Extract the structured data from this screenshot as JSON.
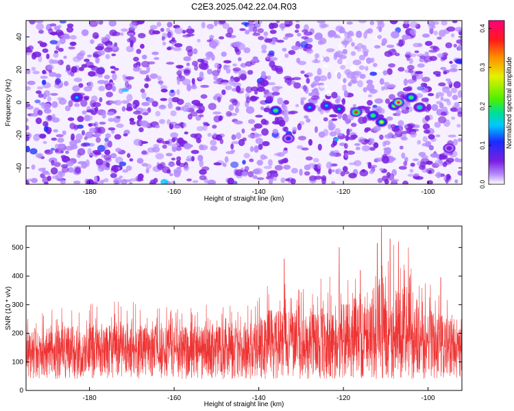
{
  "title": "C2E3.2025.042.22.04.R03",
  "colors": {
    "snr_line": "#ee3333",
    "colormap": [
      "#ffffff",
      "#b68cff",
      "#7a1fe0",
      "#1a2cff",
      "#00c8ff",
      "#00e090",
      "#4ef000",
      "#e6f000",
      "#ff8a00",
      "#ff1a1a",
      "#ff007a"
    ]
  },
  "chart_data": [
    {
      "type": "heatmap",
      "title": "C2E3.2025.042.22.04.R03",
      "xlabel": "Height of straight line (km)",
      "ylabel": "Frequency (Hz)",
      "xlim": [
        -195,
        -92
      ],
      "ylim": [
        -50,
        50
      ],
      "x_ticks": [
        -180,
        -160,
        -140,
        -120,
        -100
      ],
      "y_ticks": [
        -40,
        -20,
        0,
        20,
        40
      ],
      "colorbar": {
        "label": "Normalized spectral amplitude",
        "range": [
          0.0,
          0.42
        ],
        "ticks": [
          0.0,
          0.1,
          0.2,
          0.3,
          0.4
        ]
      },
      "features": [
        {
          "x": -136,
          "y": -5,
          "value": 0.25
        },
        {
          "x": -128,
          "y": -3,
          "value": 0.15
        },
        {
          "x": -124,
          "y": -2,
          "value": 0.18
        },
        {
          "x": -121,
          "y": -4,
          "value": 0.2
        },
        {
          "x": -117,
          "y": -6,
          "value": 0.38
        },
        {
          "x": -113,
          "y": -8,
          "value": 0.25
        },
        {
          "x": -111,
          "y": -12,
          "value": 0.3
        },
        {
          "x": -108,
          "y": -2,
          "value": 0.28
        },
        {
          "x": -107,
          "y": 0,
          "value": 0.4
        },
        {
          "x": -104,
          "y": 3,
          "value": 0.25
        },
        {
          "x": -102,
          "y": -3,
          "value": 0.22
        },
        {
          "x": -183,
          "y": 3,
          "value": 0.15
        },
        {
          "x": -133,
          "y": -22,
          "value": 0.12
        },
        {
          "x": -95,
          "y": -28,
          "value": 0.1
        }
      ]
    },
    {
      "type": "line",
      "xlabel": "Height of straight line (km)",
      "ylabel": "SNR (10 * v/v)",
      "xlim": [
        -195,
        -92
      ],
      "ylim": [
        0,
        575
      ],
      "x_ticks": [
        -180,
        -160,
        -140,
        -120,
        -100
      ],
      "y_ticks": [
        0,
        100,
        200,
        300,
        400,
        500
      ],
      "series": [
        {
          "envelope": [
            {
              "x": -195,
              "max": 260,
              "median": 130
            },
            {
              "x": -180,
              "max": 320,
              "median": 130
            },
            {
              "x": -160,
              "max": 300,
              "median": 130
            },
            {
              "x": -145,
              "max": 300,
              "median": 135
            },
            {
              "x": -137,
              "max": 390,
              "median": 160
            },
            {
              "x": -130,
              "max": 360,
              "median": 150
            },
            {
              "x": -120,
              "max": 430,
              "median": 165
            },
            {
              "x": -115,
              "max": 470,
              "median": 175
            },
            {
              "x": -111,
              "max": 575,
              "median": 185
            },
            {
              "x": -105,
              "max": 520,
              "median": 175
            },
            {
              "x": -100,
              "max": 400,
              "median": 160
            },
            {
              "x": -92,
              "max": 300,
              "median": 140
            }
          ],
          "peaks": [
            {
              "x": -134,
              "y": 460
            },
            {
              "x": -121,
              "y": 500
            },
            {
              "x": -116,
              "y": 420
            },
            {
              "x": -112,
              "y": 515
            },
            {
              "x": -111,
              "y": 575
            },
            {
              "x": -109,
              "y": 530
            },
            {
              "x": -107,
              "y": 520
            },
            {
              "x": -97,
              "y": 395
            }
          ]
        }
      ]
    }
  ]
}
